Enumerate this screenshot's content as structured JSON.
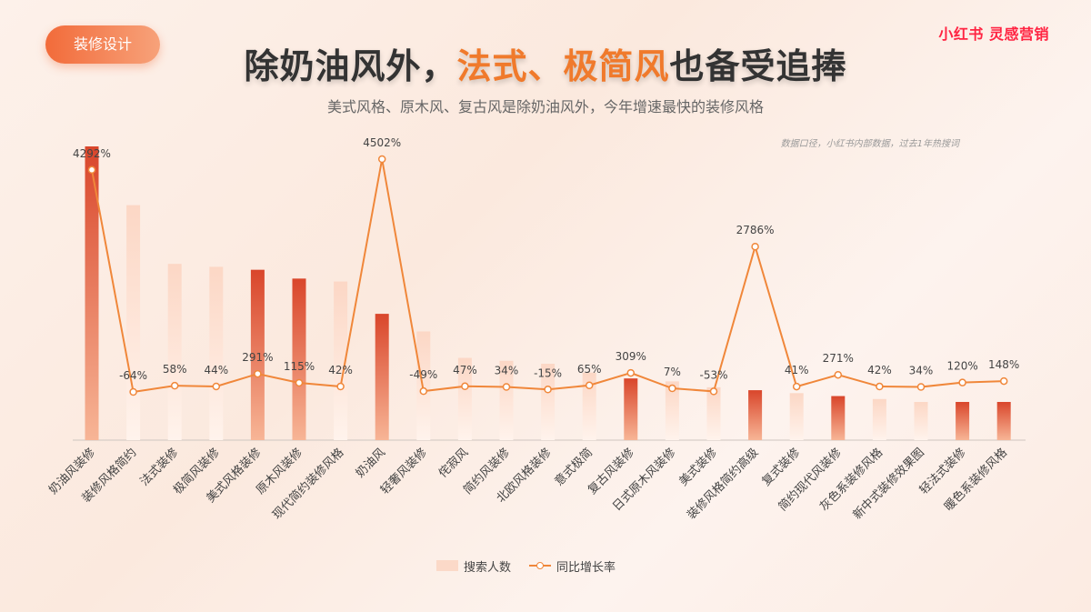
{
  "header": {
    "tag_label": "装修设计",
    "brand": "小红书 灵感营销",
    "title_part1": "除奶油风外，",
    "title_highlight": "法式、极简风",
    "title_part2": "也备受追捧",
    "subtitle": "美式风格、原木风、复古风是除奶油风外，今年增速最快的装修风格",
    "note": "数据口径，小红书内部数据，过去1年热搜词"
  },
  "legend": {
    "bar_label": "搜索人数",
    "line_label": "同比增长率"
  },
  "colors": {
    "bar_highlight_top": "#d9462b",
    "bar_highlight_bottom": "#f7b596",
    "bar_light_top": "#fcd7c5",
    "bar_light_bottom": "#fff3ec",
    "line": "#f0873a",
    "title_accent": "#f07a2c",
    "brand": "#ff2442"
  },
  "chart_data": {
    "type": "bar",
    "categories": [
      "奶油风装修",
      "装修风格简约",
      "法式装修",
      "极简风装修",
      "美式风格装修",
      "原木风装修",
      "现代简约装修风格",
      "奶油风",
      "轻奢风装修",
      "侘寂风",
      "简约风装修",
      "北欧风格装修",
      "意式极简",
      "复古风装修",
      "日式原木风装修",
      "美式装修",
      "装修风格简约高级",
      "复式装修",
      "简约现代风装修",
      "灰色系装修风格",
      "新中式装修效果图",
      "轻法式装修",
      "暖色系装修风格"
    ],
    "series": [
      {
        "name": "搜索人数",
        "type": "bar",
        "values": [
          100,
          80,
          60,
          59,
          58,
          55,
          54,
          43,
          37,
          28,
          27,
          26,
          23,
          21,
          20,
          18,
          17,
          16,
          15,
          14,
          13,
          13,
          13
        ],
        "highlight": [
          true,
          false,
          false,
          false,
          true,
          true,
          false,
          true,
          false,
          false,
          false,
          false,
          false,
          true,
          false,
          false,
          true,
          false,
          true,
          false,
          false,
          true,
          true
        ]
      },
      {
        "name": "同比增长率",
        "type": "line",
        "values": [
          4292,
          -64,
          58,
          44,
          291,
          115,
          42,
          4502,
          -49,
          47,
          34,
          -15,
          65,
          309,
          7,
          -53,
          2786,
          41,
          271,
          42,
          34,
          120,
          148
        ],
        "labels": [
          "4292%",
          "-64%",
          "58%",
          "44%",
          "291%",
          "115%",
          "42%",
          "4502%",
          "-49%",
          "47%",
          "34%",
          "-15%",
          "65%",
          "309%",
          "7%",
          "-53%",
          "2786%",
          "41%",
          "271%",
          "42%",
          "34%",
          "120%",
          "148%"
        ]
      }
    ]
  }
}
